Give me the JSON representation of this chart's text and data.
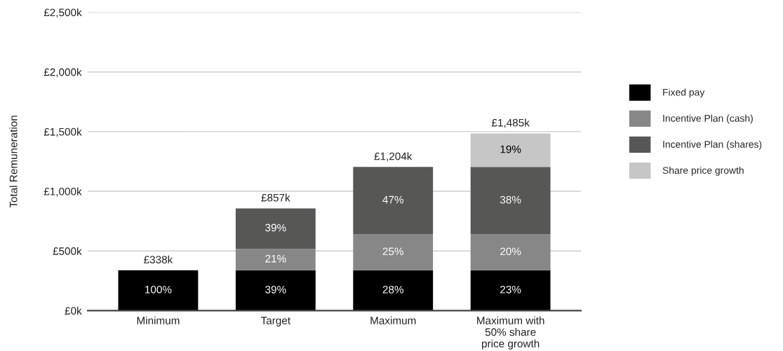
{
  "chart_data": {
    "type": "bar",
    "stacked": true,
    "ylabel": "Total Remuneration",
    "categories": [
      "Minimum",
      "Target",
      "Maximum",
      "Maximum with\n50% share\nprice growth"
    ],
    "series": [
      {
        "name": "Fixed pay",
        "color": "#000000",
        "values": [
          338,
          338,
          338,
          338
        ]
      },
      {
        "name": "Incentive Plan (cash)",
        "color": "#878787",
        "values": [
          null,
          180,
          301,
          301
        ]
      },
      {
        "name": "Incentive Plan (shares)",
        "color": "#575756",
        "values": [
          null,
          339,
          565,
          565
        ]
      },
      {
        "name": "Share price growth",
        "color": "#c6c6c6",
        "values": [
          null,
          null,
          null,
          281
        ]
      }
    ],
    "annotations": [
      "100%",
      "39%",
      "28%",
      "23%",
      "21%",
      "25%",
      "20%",
      "39%",
      "47%",
      "38%",
      "19%"
    ],
    "totals": [
      "£338k",
      "£857k",
      "£1,204k",
      "£1,485k"
    ],
    "ylim": [
      0,
      2500
    ],
    "yticks": [
      {
        "value": 0,
        "label": "£0k"
      },
      {
        "value": 500,
        "label": "£500k"
      },
      {
        "value": 1000,
        "label": "£1,000k"
      },
      {
        "value": 1500,
        "label": "£1,500k"
      },
      {
        "value": 2000,
        "label": "£2,000k"
      },
      {
        "value": 2500,
        "label": "£2,500k"
      }
    ],
    "grid": "y",
    "legend": "right"
  }
}
